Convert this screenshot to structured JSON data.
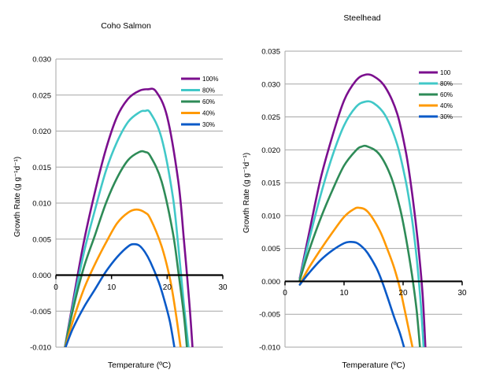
{
  "chart_data": [
    {
      "type": "line",
      "title": "Coho Salmon",
      "xlabel": "Temperature (ºC)",
      "ylabel": "Growth Rate (g g⁻¹d⁻¹)",
      "xlim": [
        0,
        30
      ],
      "ylim": [
        -0.01,
        0.03
      ],
      "x_ticks": [
        0,
        10,
        20,
        30
      ],
      "x_tick_labels": [
        "0",
        "10",
        "20",
        "30"
      ],
      "y_ticks": [
        -0.01,
        -0.005,
        0,
        0.005,
        0.01,
        0.015,
        0.02,
        0.025,
        0.03
      ],
      "y_tick_labels": [
        "-0.010",
        "-0.005",
        "0.000",
        "0.005",
        "0.010",
        "0.015",
        "0.020",
        "0.025",
        "0.030"
      ],
      "grid": "horizontal",
      "legend_position": "top-right",
      "series": [
        {
          "name": "100%",
          "color": "#7b0f8e",
          "x": [
            1.5,
            3,
            5,
            7,
            9,
            11,
            13,
            15,
            16.5,
            18,
            20,
            22,
            23,
            24,
            24.6
          ],
          "y": [
            -0.0105,
            -0.004,
            0.0045,
            0.0115,
            0.0175,
            0.022,
            0.0245,
            0.0256,
            0.0258,
            0.0255,
            0.022,
            0.013,
            0.005,
            -0.004,
            -0.0105
          ]
        },
        {
          "name": "80%",
          "color": "#41c8c8",
          "x": [
            1.5,
            3,
            5,
            7,
            9,
            11,
            13,
            15,
            16,
            17,
            19,
            21,
            22,
            23,
            23.9
          ],
          "y": [
            -0.0105,
            -0.0045,
            0.003,
            0.009,
            0.0145,
            0.0185,
            0.0213,
            0.0226,
            0.0228,
            0.0225,
            0.019,
            0.011,
            0.004,
            -0.004,
            -0.0105
          ]
        },
        {
          "name": "60%",
          "color": "#2e8b57",
          "x": [
            1.5,
            3,
            5,
            7,
            9,
            11,
            13,
            15,
            16,
            17,
            19,
            21,
            22,
            23,
            23.6
          ],
          "y": [
            -0.0105,
            -0.005,
            0.001,
            0.0055,
            0.01,
            0.0135,
            0.016,
            0.0171,
            0.0171,
            0.0165,
            0.013,
            0.006,
            0.0005,
            -0.0055,
            -0.0105
          ]
        },
        {
          "name": "40%",
          "color": "#ff9900",
          "x": [
            1.5,
            3,
            5,
            7,
            9,
            11,
            13,
            14.5,
            16,
            17,
            19,
            20.5,
            21.5,
            22.5
          ],
          "y": [
            -0.0105,
            -0.0065,
            -0.002,
            0.0015,
            0.0045,
            0.0072,
            0.0087,
            0.0091,
            0.0087,
            0.0078,
            0.004,
            -0.0005,
            -0.005,
            -0.0105
          ]
        },
        {
          "name": "30%",
          "color": "#0a5ac8",
          "x": [
            1.5,
            3,
            5,
            7,
            9,
            11,
            13,
            14,
            15,
            16,
            17,
            18.5,
            19.5,
            20.5,
            21.4
          ],
          "y": [
            -0.0105,
            -0.0075,
            -0.0045,
            -0.002,
            0.0005,
            0.0025,
            0.004,
            0.0043,
            0.0041,
            0.0032,
            0.0018,
            -0.001,
            -0.0035,
            -0.0065,
            -0.0105
          ]
        }
      ]
    },
    {
      "type": "line",
      "title": "Steelhead",
      "xlabel": "Temperature (ºC)",
      "ylabel": "Growth Rate (g g⁻¹d⁻¹)",
      "xlim": [
        0,
        30
      ],
      "ylim": [
        -0.01,
        0.035
      ],
      "x_ticks": [
        0,
        10,
        20,
        30
      ],
      "x_tick_labels": [
        "0",
        "10",
        "20",
        "30"
      ],
      "y_ticks": [
        -0.01,
        -0.005,
        0,
        0.005,
        0.01,
        0.015,
        0.02,
        0.025,
        0.03,
        0.035
      ],
      "y_tick_labels": [
        "-0.010",
        "-0.005",
        "0.000",
        "0.005",
        "0.010",
        "0.015",
        "0.020",
        "0.025",
        "0.030",
        "0.035"
      ],
      "grid": "horizontal",
      "legend_position": "top-right",
      "series": [
        {
          "name": "100",
          "color": "#7b0f8e",
          "x": [
            2.5,
            4,
            6,
            8,
            10,
            12,
            13.5,
            15,
            17,
            19,
            20.5,
            21.5,
            22.5,
            23.3,
            23.8
          ],
          "y": [
            0.0005,
            0.007,
            0.0155,
            0.022,
            0.0275,
            0.0305,
            0.0314,
            0.0312,
            0.0295,
            0.0255,
            0.0195,
            0.0135,
            0.006,
            -0.002,
            -0.0105
          ]
        },
        {
          "name": "80%",
          "color": "#41c8c8",
          "x": [
            2.5,
            4,
            6,
            8,
            10,
            12,
            13.5,
            15,
            17,
            19,
            20.5,
            21.5,
            22.3,
            23,
            23.5
          ],
          "y": [
            0.0003,
            0.006,
            0.013,
            0.019,
            0.0237,
            0.0265,
            0.0273,
            0.0271,
            0.0252,
            0.0208,
            0.015,
            0.0095,
            0.0035,
            -0.0035,
            -0.0105
          ]
        },
        {
          "name": "60%",
          "color": "#2e8b57",
          "x": [
            2.5,
            4,
            6,
            8,
            10,
            12,
            13,
            14,
            16,
            18,
            19.5,
            20.5,
            21.5,
            22.3,
            22.9
          ],
          "y": [
            0.0002,
            0.0045,
            0.0095,
            0.0138,
            0.0176,
            0.0199,
            0.0205,
            0.0205,
            0.0193,
            0.0158,
            0.011,
            0.0065,
            0.001,
            -0.0045,
            -0.0105
          ]
        },
        {
          "name": "40%",
          "color": "#ff9900",
          "x": [
            2.5,
            4,
            6,
            8,
            10,
            11.5,
            12.5,
            14,
            16,
            17.5,
            18.5,
            19.5,
            20.3,
            21,
            21.7
          ],
          "y": [
            -0.0005,
            0.002,
            0.0048,
            0.0074,
            0.0098,
            0.0109,
            0.0112,
            0.0106,
            0.0078,
            0.0045,
            0.002,
            -0.0012,
            -0.0045,
            -0.0075,
            -0.0105
          ]
        },
        {
          "name": "30%",
          "color": "#0a5ac8",
          "x": [
            2.5,
            4,
            6,
            8,
            10,
            11,
            12,
            13,
            14,
            15.5,
            16.5,
            17.5,
            18.5,
            19.5,
            20.3
          ],
          "y": [
            -0.0005,
            0.0012,
            0.0032,
            0.0047,
            0.0058,
            0.006,
            0.0059,
            0.0053,
            0.0043,
            0.002,
            -0.0002,
            -0.0028,
            -0.0055,
            -0.008,
            -0.0105
          ]
        }
      ]
    }
  ]
}
